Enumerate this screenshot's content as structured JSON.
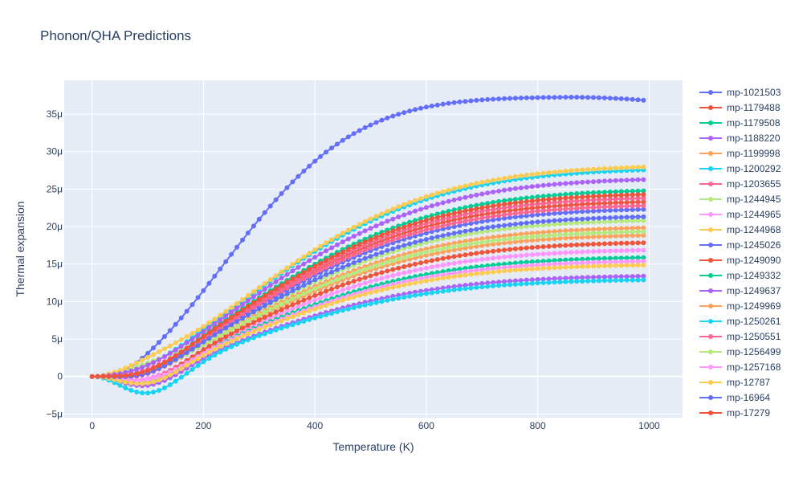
{
  "chart_data": {
    "type": "line",
    "title": "Phonon/QHA Predictions",
    "xlabel": "Temperature (K)",
    "ylabel": "Thermal expansion",
    "xlim": [
      -50,
      1060
    ],
    "ylim": [
      -5.5,
      39.5
    ],
    "x_ticks": [
      0,
      200,
      400,
      600,
      800,
      1000
    ],
    "x_tick_labels": [
      "0",
      "200",
      "400",
      "600",
      "800",
      "1000"
    ],
    "y_ticks": [
      -5,
      0,
      5,
      10,
      15,
      20,
      25,
      30,
      35
    ],
    "y_tick_labels": [
      "−5μ",
      "0",
      "5μ",
      "10μ",
      "15μ",
      "20μ",
      "25μ",
      "30μ",
      "35μ"
    ],
    "y_unit": "μ",
    "grid": true,
    "legend_position": "right",
    "x_start": 0,
    "x_end": 990,
    "x_step": 10,
    "series": [
      {
        "name": "mp-1021503",
        "color": "#636efa",
        "peak_value": 37.3,
        "min_value": -0.6,
        "peak_temperature": 840
      },
      {
        "name": "mp-1179488",
        "color": "#EF553B",
        "peak_value": 23.5,
        "min_value": -1.2
      },
      {
        "name": "mp-1179508",
        "color": "#00cc96",
        "peak_value": 25.0,
        "min_value": -1.0
      },
      {
        "name": "mp-1188220",
        "color": "#ab63fa",
        "peak_value": 13.5,
        "min_value": -2.2
      },
      {
        "name": "mp-1199998",
        "color": "#FFA15A",
        "peak_value": 19.0,
        "min_value": -0.6
      },
      {
        "name": "mp-1200292",
        "color": "#19d3f3",
        "peak_value": 27.8,
        "min_value": -0.5
      },
      {
        "name": "mp-1203655",
        "color": "#FF6692",
        "peak_value": 24.0,
        "min_value": -0.8
      },
      {
        "name": "mp-1244945",
        "color": "#B6E880",
        "peak_value": 21.0,
        "min_value": 0.3
      },
      {
        "name": "mp-1244965",
        "color": "#FF97FF",
        "peak_value": 17.0,
        "min_value": -1.5
      },
      {
        "name": "mp-1244968",
        "color": "#FECB52",
        "peak_value": 28.2,
        "min_value": 0.5
      },
      {
        "name": "mp-1245026",
        "color": "#636efa",
        "peak_value": 22.5,
        "min_value": -0.9
      },
      {
        "name": "mp-1249090",
        "color": "#EF553B",
        "peak_value": 18.0,
        "min_value": -1.8
      },
      {
        "name": "mp-1249332",
        "color": "#00cc96",
        "peak_value": 16.0,
        "min_value": -2.0
      },
      {
        "name": "mp-1249637",
        "color": "#ab63fa",
        "peak_value": 26.5,
        "min_value": -0.4
      },
      {
        "name": "mp-1249969",
        "color": "#FFA15A",
        "peak_value": 20.0,
        "min_value": -1.0
      },
      {
        "name": "mp-1250261",
        "color": "#19d3f3",
        "peak_value": 13.0,
        "min_value": -3.2
      },
      {
        "name": "mp-1250551",
        "color": "#FF6692",
        "peak_value": 23.0,
        "min_value": -1.3
      },
      {
        "name": "mp-1256499",
        "color": "#B6E880",
        "peak_value": 19.5,
        "min_value": -0.8
      },
      {
        "name": "mp-1257168",
        "color": "#FF97FF",
        "peak_value": 15.5,
        "min_value": -1.6
      },
      {
        "name": "mp-12787",
        "color": "#FECB52",
        "peak_value": 15.0,
        "min_value": -2.0
      },
      {
        "name": "mp-16964",
        "color": "#636efa",
        "peak_value": 21.5,
        "min_value": -1.1
      },
      {
        "name": "mp-17279",
        "color": "#EF553B",
        "peak_value": 24.5,
        "min_value": -1.0
      }
    ]
  }
}
